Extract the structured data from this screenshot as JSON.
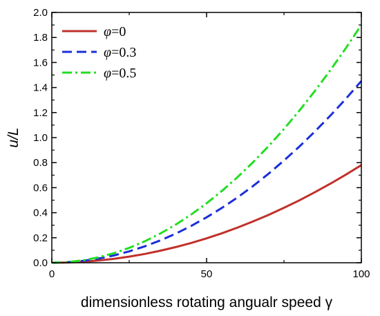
{
  "chart_data": {
    "type": "line",
    "xlabel": "dimensionless rotating angualr speed γ",
    "ylabel": "u/L",
    "xlim": [
      0,
      100
    ],
    "ylim": [
      0,
      2.0
    ],
    "x_ticks": [
      "0",
      "50",
      "100"
    ],
    "y_ticks": [
      "0.0",
      "0.2",
      "0.4",
      "0.6",
      "0.8",
      "1.0",
      "1.2",
      "1.4",
      "1.6",
      "1.8",
      "2.0"
    ],
    "grid": false,
    "legend_position": "top-left",
    "series": [
      {
        "name": "φ=0",
        "label_symbol": "φ",
        "label_value": "=0",
        "color": "#c0302a",
        "dash": "solid",
        "x": [
          0,
          5,
          10,
          15,
          20,
          25,
          30,
          35,
          40,
          45,
          50,
          55,
          60,
          65,
          70,
          75,
          80,
          85,
          90,
          95,
          100
        ],
        "y": [
          0.0,
          0.002,
          0.008,
          0.018,
          0.031,
          0.049,
          0.07,
          0.096,
          0.125,
          0.158,
          0.195,
          0.236,
          0.281,
          0.33,
          0.382,
          0.439,
          0.499,
          0.564,
          0.632,
          0.704,
          0.78
        ]
      },
      {
        "name": "φ=0.3",
        "label_symbol": "φ",
        "label_value": "=0.3",
        "color": "#1a2fd8",
        "dash": "dashed",
        "x": [
          0,
          5,
          10,
          15,
          20,
          25,
          30,
          35,
          40,
          45,
          50,
          55,
          60,
          65,
          70,
          75,
          80,
          85,
          90,
          95,
          100
        ],
        "y": [
          0.0,
          0.004,
          0.015,
          0.033,
          0.058,
          0.091,
          0.131,
          0.178,
          0.232,
          0.294,
          0.363,
          0.439,
          0.522,
          0.613,
          0.711,
          0.817,
          0.929,
          1.049,
          1.176,
          1.31,
          1.452
        ]
      },
      {
        "name": "φ=0.5",
        "label_symbol": "φ",
        "label_value": "=0.5",
        "color": "#22dd22",
        "dash": "dashdot",
        "x": [
          0,
          5,
          10,
          15,
          20,
          25,
          30,
          35,
          40,
          45,
          50,
          55,
          60,
          65,
          70,
          75,
          80,
          85,
          90,
          95,
          100
        ],
        "y": [
          0.0,
          0.005,
          0.019,
          0.043,
          0.076,
          0.119,
          0.171,
          0.233,
          0.304,
          0.385,
          0.475,
          0.575,
          0.684,
          0.803,
          0.931,
          1.069,
          1.216,
          1.373,
          1.539,
          1.715,
          1.9
        ]
      }
    ]
  }
}
